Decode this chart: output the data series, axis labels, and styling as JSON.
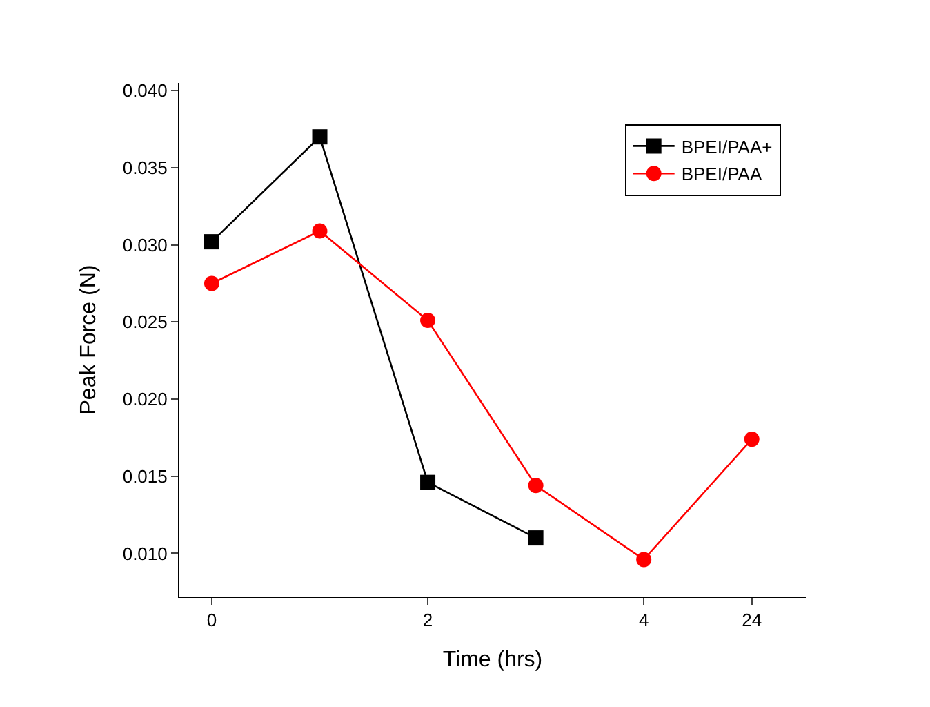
{
  "chart_data": {
    "type": "line",
    "xlabel": "Time (hrs)",
    "ylabel": "Peak Force (N)",
    "categories": [
      "0",
      null,
      "2",
      null,
      "4",
      "24"
    ],
    "series": [
      {
        "name": "BPEI/PAA+",
        "color": "#000000",
        "marker": "square",
        "values": [
          0.0302,
          0.037,
          0.0146,
          0.011,
          null,
          null
        ]
      },
      {
        "name": "BPEI/PAA",
        "color": "#ff0000",
        "marker": "circle",
        "values": [
          0.0275,
          0.0309,
          0.0251,
          0.0144,
          0.0096,
          0.0174
        ]
      }
    ],
    "ylim": [
      0.0072,
      0.0405
    ],
    "yticks": [
      {
        "value": 0.01,
        "label": "0.010"
      },
      {
        "value": 0.015,
        "label": "0.015"
      },
      {
        "value": 0.02,
        "label": "0.020"
      },
      {
        "value": 0.025,
        "label": "0.025"
      },
      {
        "value": 0.03,
        "label": "0.030"
      },
      {
        "value": 0.035,
        "label": "0.035"
      },
      {
        "value": 0.04,
        "label": "0.040"
      }
    ],
    "legend": "top right",
    "line_style": "solid"
  }
}
